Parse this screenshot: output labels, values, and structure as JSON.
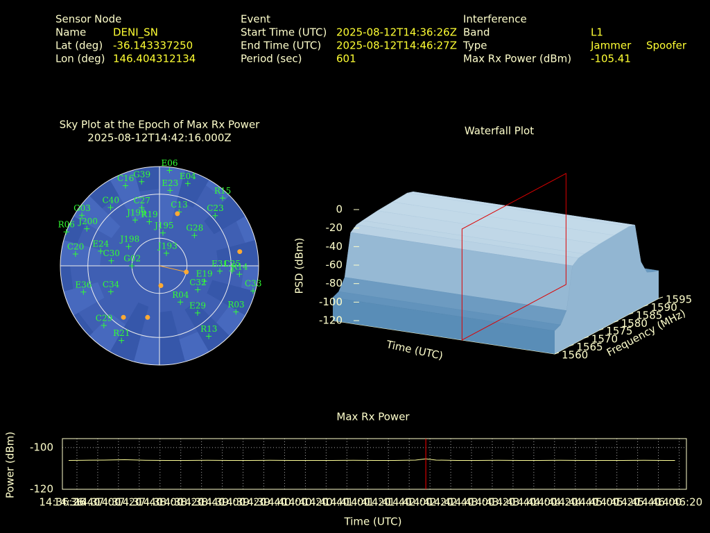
{
  "header": {
    "sensor_node": {
      "title": "Sensor Node",
      "fields": [
        {
          "label": "Name",
          "values": [
            "DENI_SN"
          ]
        },
        {
          "label": "Lat (deg)",
          "values": [
            "-36.143337250"
          ]
        },
        {
          "label": "Lon (deg)",
          "values": [
            "146.404312134"
          ]
        }
      ]
    },
    "event": {
      "title": "Event",
      "fields": [
        {
          "label": "Start Time (UTC)",
          "values": [
            "2025-08-12T14:36:26Z"
          ]
        },
        {
          "label": "End Time (UTC)",
          "values": [
            "2025-08-12T14:46:27Z"
          ]
        },
        {
          "label": "Period (sec)",
          "values": [
            "601"
          ]
        }
      ]
    },
    "interference": {
      "title": "Interference",
      "fields": [
        {
          "label": "Band",
          "values": [
            "L1"
          ]
        },
        {
          "label": "Type",
          "values": [
            "Jammer",
            "Spoofer"
          ]
        },
        {
          "label": "Max Rx Power (dBm)",
          "values": [
            "-105.41"
          ]
        }
      ]
    }
  },
  "chart_data": [
    {
      "type": "polar-scatter",
      "title": "Sky Plot at the Epoch of Max Rx Power",
      "subtitle": "2025-08-12T14:42:16.000Z",
      "rticks": [
        0,
        25,
        65
      ],
      "bearing": 103,
      "bearing_color": "#ffaa33",
      "series": [
        {
          "color": "#33ff33",
          "labels": [
            "C16",
            "G39",
            "E06",
            "E23",
            "E04",
            "R15",
            "C23",
            "G03",
            "C40",
            "C27",
            "R19",
            "J199",
            "C13",
            "J195",
            "R06",
            "J200",
            "C20",
            "E24",
            "J198",
            "J193",
            "G28",
            "C30",
            "G02",
            "E31",
            "R14",
            "C25",
            "E19",
            "C33",
            "C32",
            "E36",
            "C34",
            "R04",
            "E29",
            "R03",
            "C29",
            "R21",
            "R13"
          ],
          "az": [
            337,
            348,
            6,
            8,
            19,
            43,
            48,
            303,
            320,
            343,
            347,
            332,
            20,
            6,
            290,
            297,
            278,
            284,
            302,
            29,
            49,
            276,
            270,
            95,
            96,
            94,
            109,
            105,
            122,
            251,
            242,
            150,
            141,
            121,
            223,
            207,
            145
          ],
          "el": [
            11,
            12,
            3,
            21,
            11,
            6,
            22,
            6,
            21,
            35,
            49,
            43,
            38,
            60,
            0,
            16,
            13,
            35,
            57,
            77,
            48,
            46,
            65,
            35,
            17,
            24,
            47,
            2,
            49,
            17,
            40,
            52,
            35,
            9,
            16,
            14,
            12
          ]
        },
        {
          "color": "#ffaa33",
          "az": [
            19,
            103,
            176,
            80,
            215,
            193
          ],
          "el": [
            40,
            65,
            72,
            16,
            33,
            42
          ]
        }
      ]
    },
    {
      "type": "waterfall",
      "title": "Waterfall Plot",
      "xlabel": "Time (UTC)",
      "ylabel": "Frequency (MHz)",
      "zlabel": "PSD (dBm)",
      "ylim": [
        1560,
        1595
      ],
      "yticks": [
        1560,
        1565,
        1570,
        1575,
        1580,
        1585,
        1590,
        1595
      ],
      "zlim": [
        -120,
        0
      ],
      "zticks": [
        0,
        -20,
        -40,
        -60,
        -80,
        -100,
        -120
      ],
      "frequency": [
        1560,
        1562,
        1564,
        1566,
        1568,
        1570,
        1575,
        1580,
        1585,
        1587,
        1589,
        1591,
        1593,
        1595
      ],
      "psd": [
        -95,
        -92,
        -80,
        -35,
        -30,
        -29,
        -27,
        -26,
        -25,
        -27,
        -70,
        -85,
        -88,
        -90
      ],
      "plane_color": "#dd0000"
    },
    {
      "type": "line",
      "title": "Max Rx Power",
      "xlabel": "Time (UTC)",
      "ylabel": "Power (dBm)",
      "xlim": [
        0,
        601
      ],
      "ylim": [
        -120,
        -95.7
      ],
      "yticks": [
        -100,
        -120
      ],
      "xticks": [
        {
          "value": 0,
          "label": "14:36:26"
        },
        {
          "value": 14,
          "label": "14:36:40"
        },
        {
          "value": 34,
          "label": "14:37:00"
        },
        {
          "value": 54,
          "label": "14:37:20"
        },
        {
          "value": 74,
          "label": "14:37:40"
        },
        {
          "value": 94,
          "label": "14:38:00"
        },
        {
          "value": 114,
          "label": "14:38:20"
        },
        {
          "value": 134,
          "label": "14:38:40"
        },
        {
          "value": 154,
          "label": "14:39:00"
        },
        {
          "value": 174,
          "label": "14:39:20"
        },
        {
          "value": 194,
          "label": "14:39:40"
        },
        {
          "value": 214,
          "label": "14:40:00"
        },
        {
          "value": 234,
          "label": "14:40:20"
        },
        {
          "value": 254,
          "label": "14:40:40"
        },
        {
          "value": 274,
          "label": "14:41:00"
        },
        {
          "value": 294,
          "label": "14:41:20"
        },
        {
          "value": 314,
          "label": "14:41:40"
        },
        {
          "value": 334,
          "label": "14:42:00"
        },
        {
          "value": 354,
          "label": "14:42:20"
        },
        {
          "value": 374,
          "label": "14:42:40"
        },
        {
          "value": 394,
          "label": "14:43:00"
        },
        {
          "value": 414,
          "label": "14:43:20"
        },
        {
          "value": 434,
          "label": "14:43:40"
        },
        {
          "value": 454,
          "label": "14:44:00"
        },
        {
          "value": 474,
          "label": "14:44:20"
        },
        {
          "value": 494,
          "label": "14:44:40"
        },
        {
          "value": 514,
          "label": "14:45:00"
        },
        {
          "value": 534,
          "label": "14:45:20"
        },
        {
          "value": 554,
          "label": "14:45:40"
        },
        {
          "value": 574,
          "label": "14:46:00"
        },
        {
          "value": 594,
          "label": "14:46:20"
        }
      ],
      "x": [
        6,
        20,
        40,
        60,
        80,
        100,
        120,
        140,
        160,
        180,
        200,
        220,
        240,
        260,
        280,
        300,
        320,
        340,
        350,
        360,
        380,
        400,
        420,
        440,
        460,
        480,
        500,
        520,
        540,
        560,
        580,
        590
      ],
      "values": [
        -106.2,
        -106.1,
        -106.0,
        -105.8,
        -106.1,
        -106.2,
        -106.2,
        -106.1,
        -106.2,
        -106.2,
        -106.1,
        -106.2,
        -106.2,
        -106.2,
        -106.1,
        -106.2,
        -106.2,
        -106.0,
        -105.41,
        -106.0,
        -106.2,
        -106.2,
        -106.1,
        -106.2,
        -106.2,
        -106.1,
        -106.2,
        -106.2,
        -106.2,
        -106.1,
        -106.2,
        -106.2
      ],
      "color": "#ffff99",
      "marker": {
        "x": 350,
        "color": "#ff0000"
      },
      "grid": true
    }
  ]
}
